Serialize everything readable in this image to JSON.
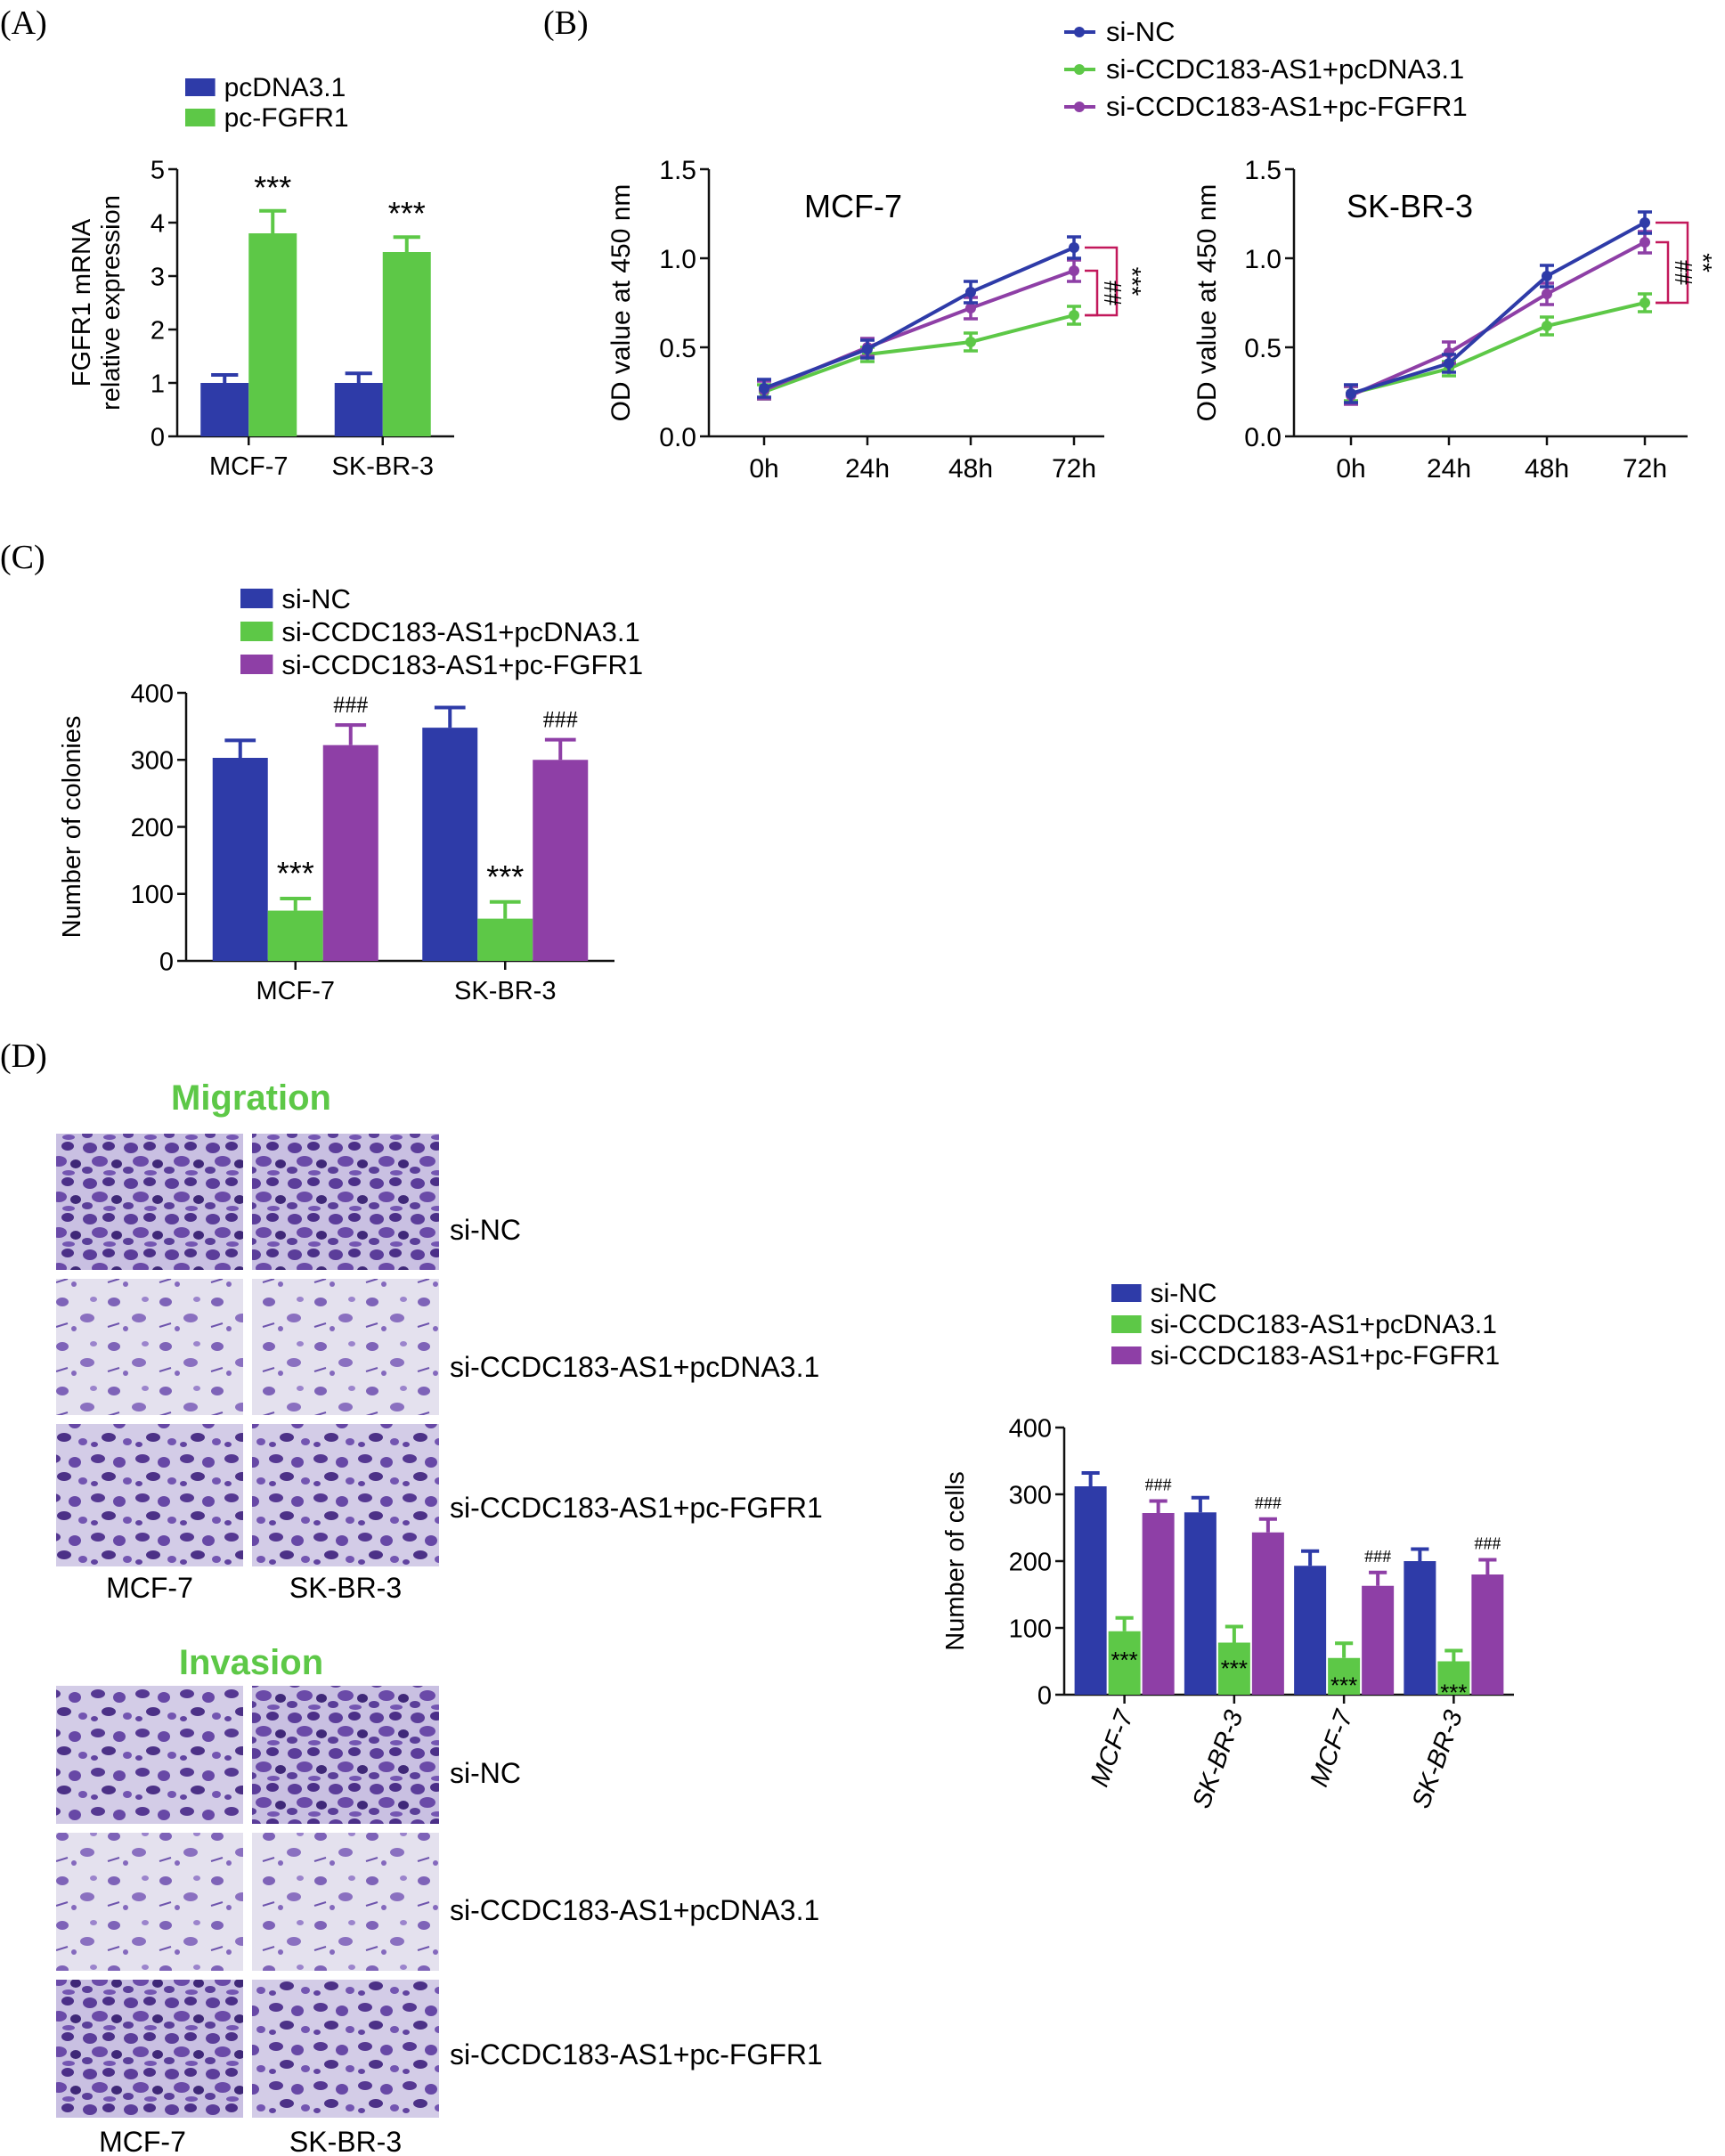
{
  "panels": {
    "A": "(A)",
    "B": "(B)",
    "C": "(C)",
    "D": "(D)"
  },
  "colors": {
    "blue": "#2E3BA8",
    "green": "#5DC847",
    "purple": "#8E3FA6",
    "bracket": "#C2185B",
    "title_green": "#5DC847"
  },
  "groups3": [
    "si-NC",
    "si-CCDC183-AS1+pcDNA3.1",
    "si-CCDC183-AS1+pc-FGFR1"
  ],
  "chart_data": [
    {
      "id": "A",
      "type": "bar",
      "title": "",
      "xlabel": "",
      "ylabel_lines": [
        "FGFR1 mRNA",
        "relative expression"
      ],
      "categories": [
        "MCF-7",
        "SK-BR-3"
      ],
      "series": [
        {
          "name": "pcDNA3.1",
          "color": "blue",
          "values": [
            1.0,
            1.0
          ],
          "errors": [
            0.15,
            0.18
          ]
        },
        {
          "name": "pc-FGFR1",
          "color": "green",
          "values": [
            3.8,
            3.45
          ],
          "errors": [
            0.42,
            0.28
          ]
        }
      ],
      "ylim": [
        0,
        5
      ],
      "yticks": [
        0,
        1,
        2,
        3,
        4,
        5
      ],
      "ytick_labels": [
        "0",
        "1",
        "2",
        "3",
        "4",
        "5"
      ],
      "annotations": [
        {
          "category": 0,
          "series": 1,
          "text": "***"
        },
        {
          "category": 1,
          "series": 1,
          "text": "***"
        }
      ]
    },
    {
      "id": "B1",
      "type": "line",
      "title": "MCF-7",
      "ylabel": "OD value at 450 nm",
      "x": [
        "0h",
        "24h",
        "48h",
        "72h"
      ],
      "series": [
        {
          "name": "si-NC",
          "color": "blue",
          "values": [
            0.27,
            0.49,
            0.81,
            1.06
          ],
          "errors": [
            0.05,
            0.05,
            0.06,
            0.06
          ]
        },
        {
          "name": "si-CCDC183-AS1+pcDNA3.1",
          "color": "green",
          "values": [
            0.25,
            0.46,
            0.53,
            0.68
          ],
          "errors": [
            0.04,
            0.04,
            0.05,
            0.05
          ]
        },
        {
          "name": "si-CCDC183-AS1+pc-FGFR1",
          "color": "purple",
          "values": [
            0.26,
            0.5,
            0.72,
            0.93
          ],
          "errors": [
            0.05,
            0.05,
            0.06,
            0.06
          ]
        }
      ],
      "ylim": [
        0,
        1.5
      ],
      "yticks": [
        0,
        0.5,
        1.0,
        1.5
      ],
      "ytick_labels": [
        "0.0",
        "0.5",
        "1.0",
        "1.5"
      ],
      "bracket_labels": {
        "inner": "##",
        "outer": "***"
      }
    },
    {
      "id": "B2",
      "type": "line",
      "title": "SK-BR-3",
      "ylabel": "OD value at 450 nm",
      "x": [
        "0h",
        "24h",
        "48h",
        "72h"
      ],
      "series": [
        {
          "name": "si-NC",
          "color": "blue",
          "values": [
            0.24,
            0.41,
            0.9,
            1.2
          ],
          "errors": [
            0.05,
            0.05,
            0.06,
            0.06
          ]
        },
        {
          "name": "si-CCDC183-AS1+pcDNA3.1",
          "color": "green",
          "values": [
            0.24,
            0.38,
            0.62,
            0.75
          ],
          "errors": [
            0.04,
            0.04,
            0.05,
            0.05
          ]
        },
        {
          "name": "si-CCDC183-AS1+pc-FGFR1",
          "color": "purple",
          "values": [
            0.23,
            0.47,
            0.8,
            1.09
          ],
          "errors": [
            0.05,
            0.06,
            0.06,
            0.06
          ]
        }
      ],
      "ylim": [
        0,
        1.5
      ],
      "yticks": [
        0,
        0.5,
        1.0,
        1.5
      ],
      "ytick_labels": [
        "0.0",
        "0.5",
        "1.0",
        "1.5"
      ],
      "bracket_labels": {
        "inner": "##",
        "outer": "**"
      }
    },
    {
      "id": "C",
      "type": "bar",
      "title": "",
      "ylabel_lines": [
        "Number of colonies"
      ],
      "categories": [
        "MCF-7",
        "SK-BR-3"
      ],
      "series": [
        {
          "name": "si-NC",
          "color": "blue",
          "values": [
            303,
            348
          ],
          "errors": [
            26,
            30
          ]
        },
        {
          "name": "si-CCDC183-AS1+pcDNA3.1",
          "color": "green",
          "values": [
            75,
            63
          ],
          "errors": [
            18,
            25
          ]
        },
        {
          "name": "si-CCDC183-AS1+pc-FGFR1",
          "color": "purple",
          "values": [
            322,
            300
          ],
          "errors": [
            30,
            30
          ]
        }
      ],
      "ylim": [
        0,
        400
      ],
      "yticks": [
        0,
        100,
        200,
        300,
        400
      ],
      "ytick_labels": [
        "0",
        "100",
        "200",
        "300",
        "400"
      ],
      "annotations": [
        {
          "category": 0,
          "series": 1,
          "text": "***"
        },
        {
          "category": 1,
          "series": 1,
          "text": "***"
        },
        {
          "category": 0,
          "series": 2,
          "text": "###"
        },
        {
          "category": 1,
          "series": 2,
          "text": "###"
        }
      ]
    },
    {
      "id": "D",
      "type": "bar",
      "title": "",
      "ylabel_lines": [
        "Number of cells"
      ],
      "categories": [
        "MCF-7",
        "SK-BR-3",
        "MCF-7",
        "SK-BR-3"
      ],
      "series": [
        {
          "name": "si-NC",
          "color": "blue",
          "values": [
            312,
            273,
            193,
            200
          ],
          "errors": [
            20,
            22,
            22,
            18
          ]
        },
        {
          "name": "si-CCDC183-AS1+pcDNA3.1",
          "color": "green",
          "values": [
            95,
            78,
            55,
            50
          ],
          "errors": [
            20,
            24,
            22,
            16
          ]
        },
        {
          "name": "si-CCDC183-AS1+pc-FGFR1",
          "color": "purple",
          "values": [
            272,
            243,
            163,
            180
          ],
          "errors": [
            18,
            20,
            20,
            22
          ]
        }
      ],
      "ylim": [
        0,
        400
      ],
      "yticks": [
        0,
        100,
        200,
        300,
        400
      ],
      "ytick_labels": [
        "0",
        "100",
        "200",
        "300",
        "400"
      ],
      "annotations": [
        {
          "category": 0,
          "series": 1,
          "text": "***"
        },
        {
          "category": 1,
          "series": 1,
          "text": "***"
        },
        {
          "category": 2,
          "series": 1,
          "text": "***"
        },
        {
          "category": 3,
          "series": 1,
          "text": "***"
        },
        {
          "category": 0,
          "series": 2,
          "text": "###"
        },
        {
          "category": 1,
          "series": 2,
          "text": "###"
        },
        {
          "category": 2,
          "series": 2,
          "text": "###"
        },
        {
          "category": 3,
          "series": 2,
          "text": "###"
        }
      ]
    }
  ],
  "micrographs": {
    "migration_title": "Migration",
    "invasion_title": "Invasion",
    "row_labels": [
      "si-NC",
      "si-CCDC183-AS1+pcDNA3.1",
      "si-CCDC183-AS1+pc-FGFR1"
    ],
    "col_labels": [
      "MCF-7",
      "SK-BR-3"
    ]
  }
}
